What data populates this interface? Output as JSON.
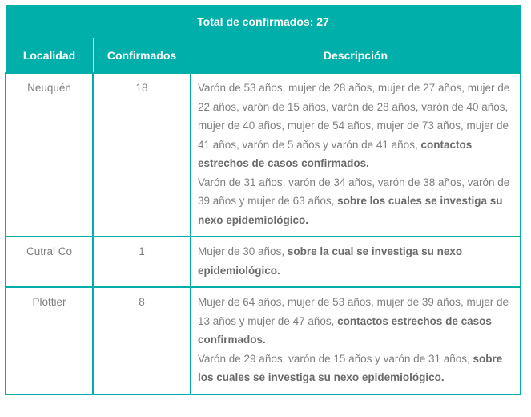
{
  "table": {
    "title": "Total de confirmados: 27",
    "headers": [
      "Localidad",
      "Confirmados",
      "Descripción"
    ],
    "rows": [
      {
        "localidad": "Neuquén",
        "confirmados": "18",
        "descripcion": [
          {
            "normal": "Varón de 53 años, mujer de 28 años, mujer de 27 años, mujer de 22 años, varón de 15 años, varón de 28 años, varón de 40 años, mujer de 40 años, mujer de 54 años, mujer de 73 años, mujer de 41 años, varón de 5 años y varón de 41 años, ",
            "bold": "contactos estrechos de casos confirmados."
          },
          {
            "normal": "Varón de 31 años, varón de 34 años, varón de 38 años, varón de 39 años y mujer de 63 años, ",
            "bold": "sobre los cuales se investiga su nexo epidemiológico."
          }
        ]
      },
      {
        "localidad": "Cutral Co",
        "confirmados": "1",
        "descripcion": [
          {
            "normal": "Mujer de 30 años, ",
            "bold": "sobre la cual se investiga su nexo epidemiológico."
          }
        ]
      },
      {
        "localidad": "Plottier",
        "confirmados": "8",
        "descripcion": [
          {
            "normal": "Mujer de 64 años, mujer de 53 años, mujer de 39 años, mujer de 13 años y mujer de 47 años, ",
            "bold": "contactos estrechos de casos confirmados."
          },
          {
            "normal": "Varón de 29 años, varón de 15 años y varón de 31 años, ",
            "bold": "sobre los cuales se investiga su nexo epidemiológico."
          }
        ]
      }
    ]
  },
  "colors": {
    "header_bg": "#00AFAA",
    "text": "#7f7f7f"
  }
}
